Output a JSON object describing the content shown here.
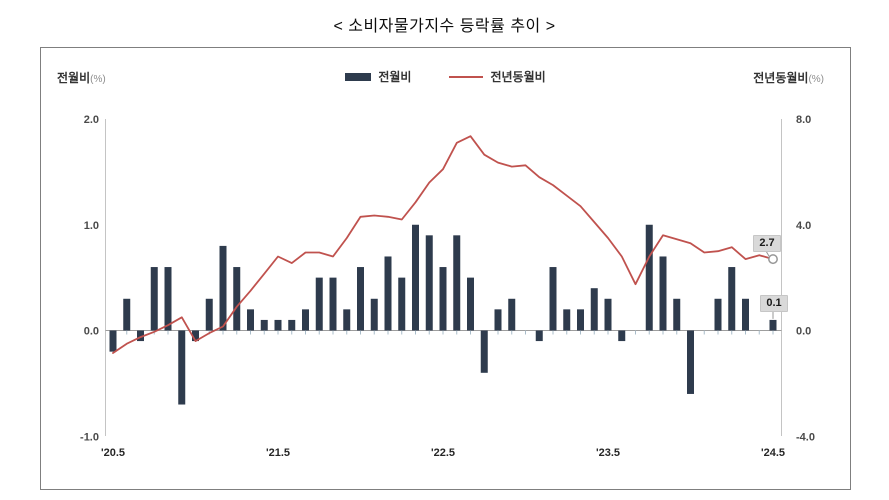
{
  "title": "< 소비자물가지수 등락률 추이 >",
  "axes": {
    "left_title": "전월비",
    "left_title_unit": "(%)",
    "right_title": "전년동월비",
    "right_title_unit": "(%)"
  },
  "legend": [
    {
      "label": "전월비",
      "type": "bar"
    },
    {
      "label": "전년동월비",
      "type": "line"
    }
  ],
  "annotations": {
    "line_end": "2.7",
    "bar_end": "0.1"
  },
  "colors": {
    "bar": "#2e3b4d",
    "line": "#c0524e",
    "axis_line": "#c4c4c4",
    "baseline": "#9e9e9e",
    "tick": "#a9bcc9",
    "axis_text": "#4a4a4a",
    "x_text": "#262626",
    "marker_stroke": "#979797",
    "annotation_bg": "#d9d9d9",
    "border": "#7f7f7f"
  },
  "chart_data": {
    "type": "bar+line",
    "title": "소비자물가지수 등락률 추이",
    "months": [
      "2020-05",
      "2020-06",
      "2020-07",
      "2020-08",
      "2020-09",
      "2020-10",
      "2020-11",
      "2020-12",
      "2021-01",
      "2021-02",
      "2021-03",
      "2021-04",
      "2021-05",
      "2021-06",
      "2021-07",
      "2021-08",
      "2021-09",
      "2021-10",
      "2021-11",
      "2021-12",
      "2022-01",
      "2022-02",
      "2022-03",
      "2022-04",
      "2022-05",
      "2022-06",
      "2022-07",
      "2022-08",
      "2022-09",
      "2022-10",
      "2022-11",
      "2022-12",
      "2023-01",
      "2023-02",
      "2023-03",
      "2023-04",
      "2023-05",
      "2023-06",
      "2023-07",
      "2023-08",
      "2023-09",
      "2023-10",
      "2023-11",
      "2023-12",
      "2024-01",
      "2024-02",
      "2024-03",
      "2024-04",
      "2024-05"
    ],
    "series": [
      {
        "name": "전월비",
        "type": "bar",
        "axis": "left",
        "values": [
          -0.2,
          0.3,
          -0.1,
          0.6,
          0.6,
          -0.7,
          -0.1,
          0.3,
          0.8,
          0.6,
          0.2,
          0.1,
          0.1,
          0.1,
          0.2,
          0.5,
          0.5,
          0.2,
          0.6,
          0.3,
          0.7,
          0.5,
          1.0,
          0.9,
          0.6,
          0.9,
          0.5,
          -0.4,
          0.2,
          0.3,
          0.0,
          -0.1,
          0.6,
          0.2,
          0.2,
          0.4,
          0.3,
          -0.1,
          0.0,
          1.0,
          0.7,
          0.3,
          -0.6,
          0.0,
          0.3,
          0.6,
          0.3,
          0.0,
          0.1
        ]
      },
      {
        "name": "전년동월비",
        "type": "line",
        "axis": "right",
        "values": [
          -0.85,
          -0.5,
          -0.25,
          -0.05,
          0.2,
          0.5,
          -0.4,
          -0.1,
          0.15,
          0.9,
          1.5,
          2.15,
          2.8,
          2.55,
          2.95,
          2.95,
          2.8,
          3.5,
          4.3,
          4.35,
          4.3,
          4.2,
          4.85,
          5.6,
          6.1,
          7.1,
          7.35,
          6.65,
          6.35,
          6.2,
          6.25,
          5.8,
          5.5,
          5.1,
          4.7,
          4.1,
          3.5,
          2.8,
          1.75,
          2.8,
          3.6,
          3.45,
          3.3,
          2.95,
          3.0,
          3.15,
          2.7,
          2.85,
          2.7
        ]
      }
    ],
    "x_tick_labels": [
      "'20.5",
      "'21.5",
      "'22.5",
      "'23.5",
      "'24.5"
    ],
    "x_tick_month_index": [
      0,
      12,
      24,
      36,
      48
    ],
    "left_axis": {
      "label": "전월비(%)",
      "ticks": [
        2.0,
        1.0,
        0.0,
        -1.0
      ],
      "range": [
        -1.0,
        2.0
      ]
    },
    "right_axis": {
      "label": "전년동월비(%)",
      "ticks": [
        8.0,
        4.0,
        0.0,
        -4.0
      ],
      "range": [
        -4.0,
        8.0
      ]
    },
    "grid": false,
    "legend_position": "top-center",
    "point_labels": {
      "last_line_value": 2.7,
      "last_bar_value": 0.1
    }
  }
}
